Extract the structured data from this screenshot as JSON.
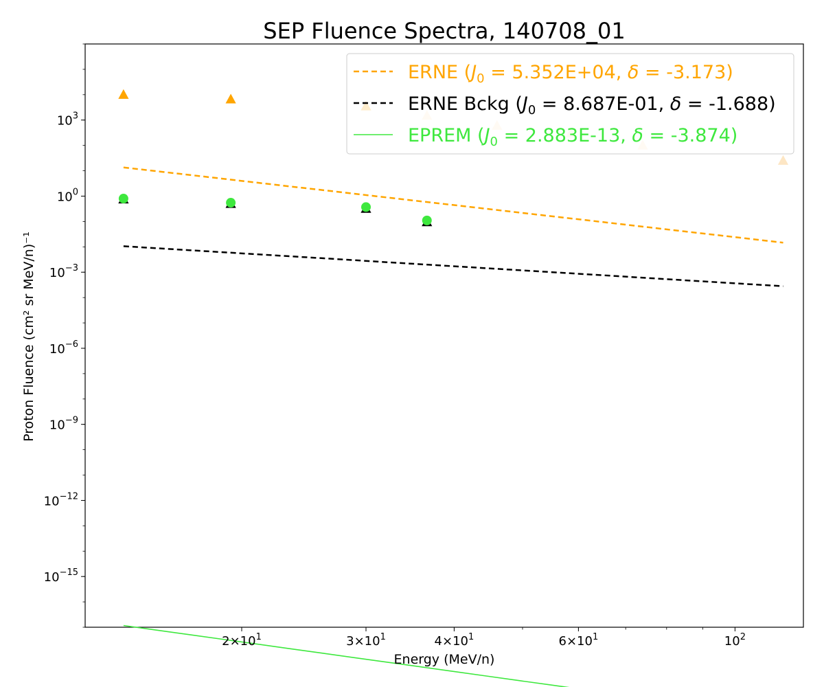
{
  "chart_data": {
    "type": "line",
    "title": "SEP Fluence Spectra, 140708_01",
    "xlabel": "Energy (MeV/n)",
    "ylabel": "Proton Fluence (cm² sr MeV/n)⁻¹",
    "xscale": "log",
    "yscale": "log",
    "xlim": [
      12.0,
      125.0
    ],
    "ylim": [
      1e-17,
      1000000.0
    ],
    "grid": false,
    "legend_position": "top-right",
    "x_ticks": [
      {
        "value": 20,
        "label_mantissa": "2",
        "label_exp": "1"
      },
      {
        "value": 30,
        "label_mantissa": "3",
        "label_exp": "1"
      },
      {
        "value": 40,
        "label_mantissa": "4",
        "label_exp": "1"
      },
      {
        "value": 60,
        "label_mantissa": "6",
        "label_exp": "1"
      },
      {
        "value": 100,
        "label_mantissa": "",
        "label_exp": "2"
      }
    ],
    "y_ticks": [
      {
        "exp": 3,
        "label_exp": "3"
      },
      {
        "exp": 0,
        "label_exp": "0"
      },
      {
        "exp": -3,
        "label_exp": "−3"
      },
      {
        "exp": -6,
        "label_exp": "−6"
      },
      {
        "exp": -9,
        "label_exp": "−9"
      },
      {
        "exp": -12,
        "label_exp": "−12"
      },
      {
        "exp": -15,
        "label_exp": "−15"
      }
    ],
    "series": [
      {
        "name": "ERNE",
        "legend_params": {
          "j0": "5.352E+04",
          "delta": "-3.173"
        },
        "color": "#FFA500",
        "faded_color": "#FDE6C4",
        "marker": "triangle",
        "points": [
          {
            "x": 13.6,
            "y": 10000,
            "faded": false
          },
          {
            "x": 19.3,
            "y": 6600,
            "faded": false
          },
          {
            "x": 30.0,
            "y": 3500,
            "faded": false
          },
          {
            "x": 36.6,
            "y": 1500,
            "faded": true
          },
          {
            "x": 46.0,
            "y": 600,
            "faded": true
          },
          {
            "x": 58.5,
            "y": 300,
            "faded": true
          },
          {
            "x": 74.0,
            "y": 100,
            "faded": true
          },
          {
            "x": 117.0,
            "y": 25,
            "faded": true
          }
        ],
        "fit_x": [
          13.6,
          117.0
        ]
      },
      {
        "name": "ERNE Bckg",
        "legend_params": {
          "j0": "8.687E-01",
          "delta": "-1.688"
        },
        "color": "#000000",
        "marker": "triangle",
        "points": [
          {
            "x": 13.6,
            "y": 0.75
          },
          {
            "x": 19.3,
            "y": 0.5
          },
          {
            "x": 30.0,
            "y": 0.32
          },
          {
            "x": 36.6,
            "y": 0.095
          }
        ],
        "fit_x": [
          13.6,
          117.0
        ]
      },
      {
        "name": "EPREM",
        "legend_params": {
          "j0": "2.883E-13",
          "delta": "-3.874"
        },
        "color": "#3EE83E",
        "marker": "circle",
        "points": [
          {
            "x": 13.6,
            "y": 0.8
          },
          {
            "x": 19.3,
            "y": 0.55
          },
          {
            "x": 30.0,
            "y": 0.37
          },
          {
            "x": 36.6,
            "y": 0.11
          }
        ],
        "fit_x": [
          13.6,
          117.0
        ]
      }
    ]
  }
}
